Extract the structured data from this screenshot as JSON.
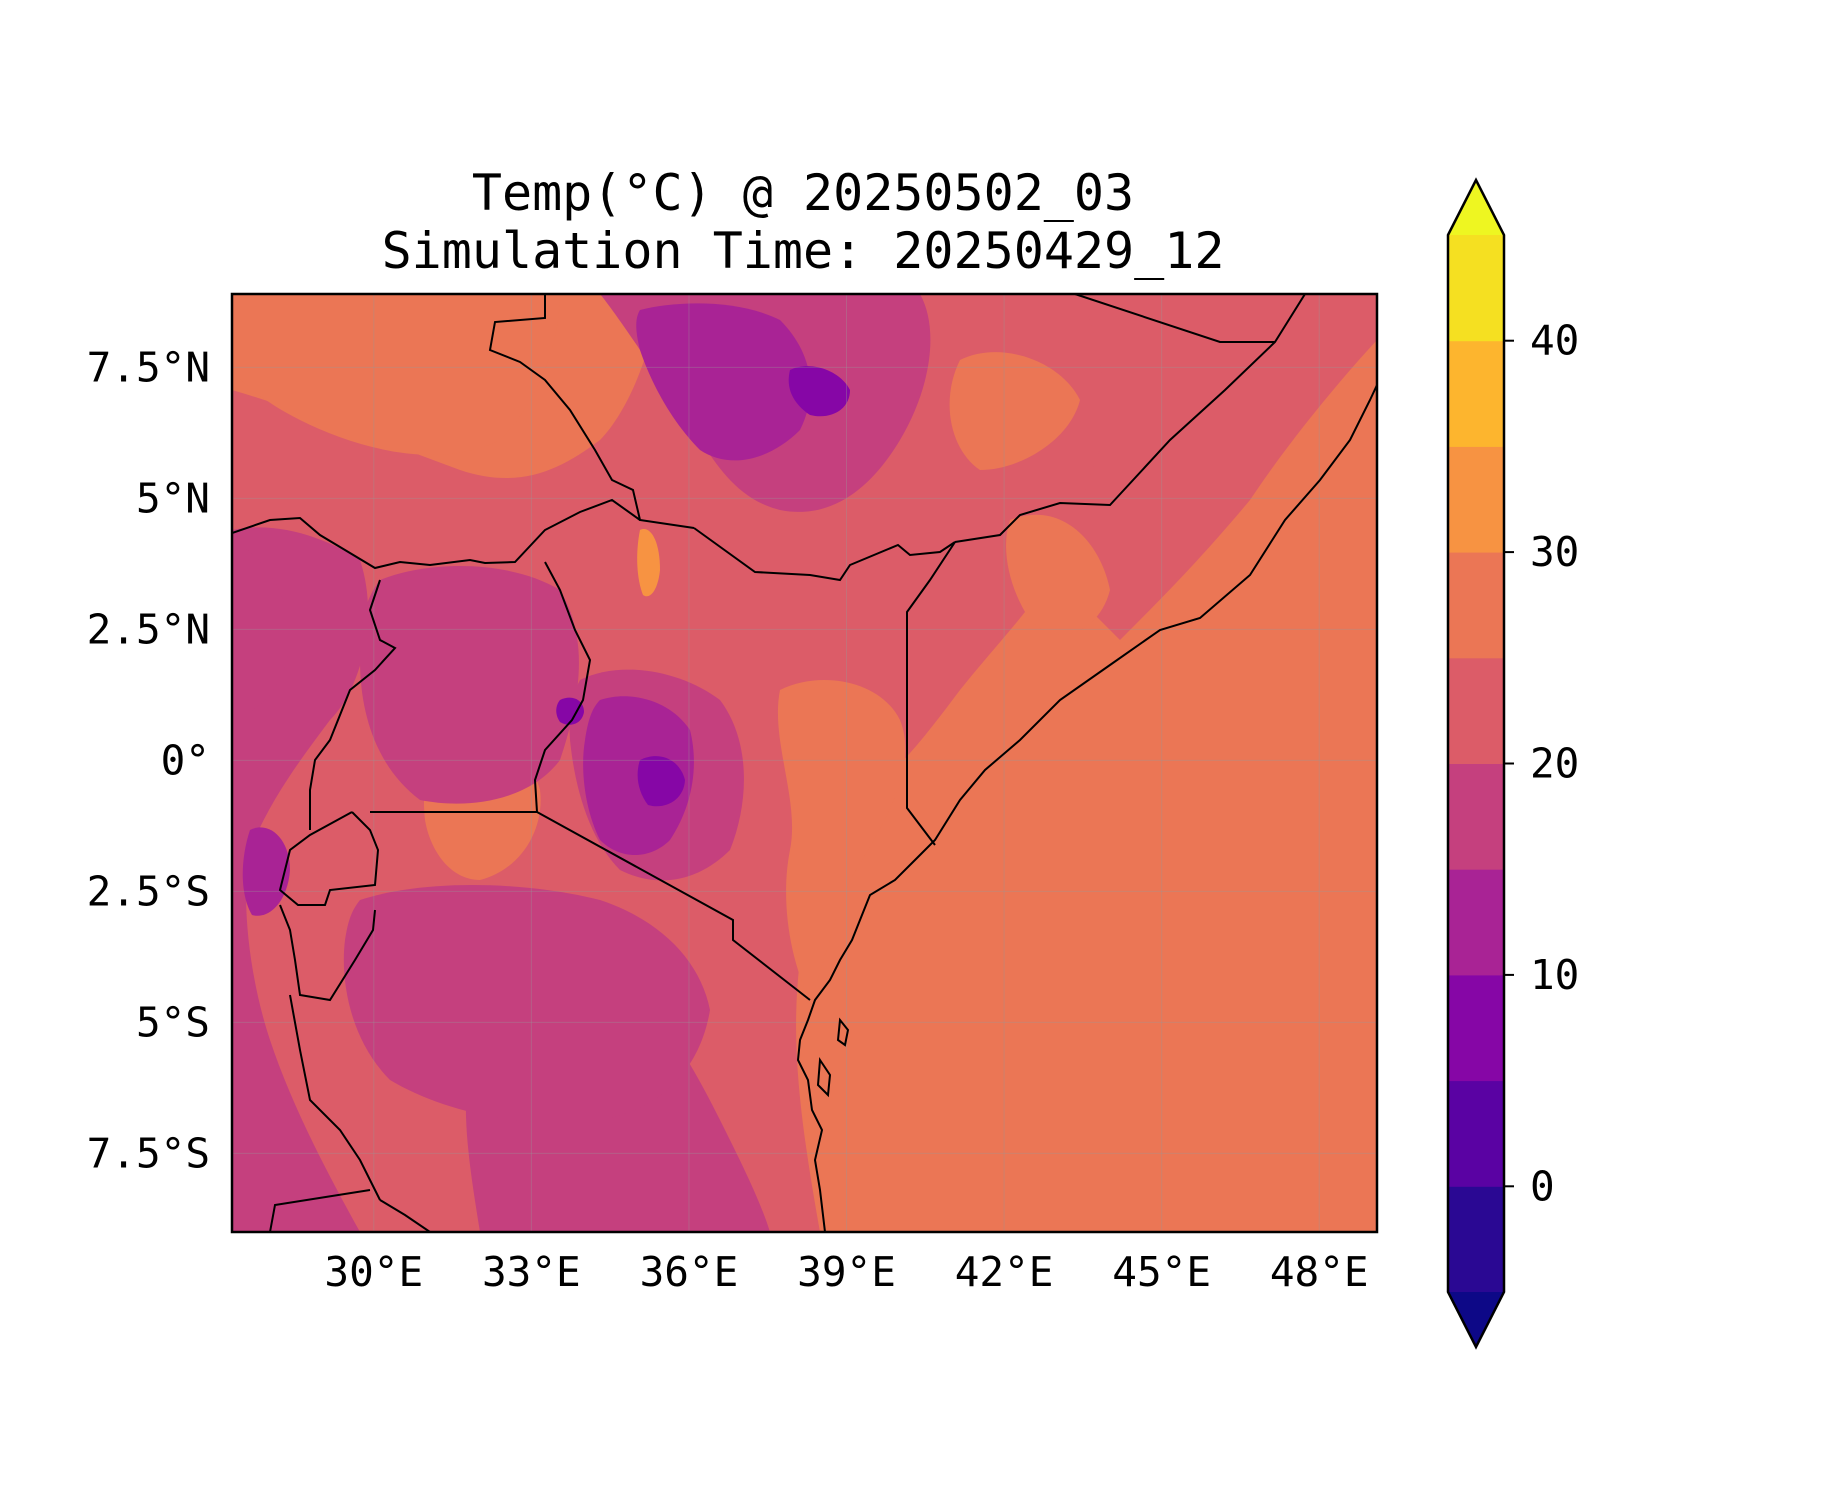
{
  "title": {
    "line1": "Temp(°C) @ 20250502_03",
    "line2": "Simulation Time: 20250429_12"
  },
  "map": {
    "lon_range": [
      27.3,
      49.1
    ],
    "lat_range": [
      -9.0,
      8.9
    ],
    "ocean_value_c": 27,
    "gridlines": true,
    "lon_ticks": [
      {
        "value": 30,
        "label": "30°E"
      },
      {
        "value": 33,
        "label": "33°E"
      },
      {
        "value": 36,
        "label": "36°E"
      },
      {
        "value": 39,
        "label": "39°E"
      },
      {
        "value": 42,
        "label": "42°E"
      },
      {
        "value": 45,
        "label": "45°E"
      },
      {
        "value": 48,
        "label": "48°E"
      }
    ],
    "lat_ticks": [
      {
        "value": 7.5,
        "label": "7.5°N"
      },
      {
        "value": 5,
        "label": "5°N"
      },
      {
        "value": 2.5,
        "label": "2.5°N"
      },
      {
        "value": 0,
        "label": "0°"
      },
      {
        "value": -2.5,
        "label": "2.5°S"
      },
      {
        "value": -5,
        "label": "5°S"
      },
      {
        "value": -7.5,
        "label": "7.5°S"
      }
    ]
  },
  "colorbar": {
    "range": [
      -5,
      45
    ],
    "extend": "both",
    "levels": [
      {
        "from": -5,
        "to": 0,
        "color": "#2a0893"
      },
      {
        "from": 0,
        "to": 5,
        "color": "#5a02a3"
      },
      {
        "from": 5,
        "to": 10,
        "color": "#8606a6"
      },
      {
        "from": 10,
        "to": 15,
        "color": "#a92395"
      },
      {
        "from": 15,
        "to": 20,
        "color": "#c5407e"
      },
      {
        "from": 20,
        "to": 25,
        "color": "#dc5c68"
      },
      {
        "from": 25,
        "to": 30,
        "color": "#eb7655"
      },
      {
        "from": 30,
        "to": 35,
        "color": "#f79342"
      },
      {
        "from": 35,
        "to": 40,
        "color": "#fdb52e"
      },
      {
        "from": 40,
        "to": 45,
        "color": "#f5e021"
      }
    ],
    "under_color": "#0d0887",
    "over_color": "#eef621",
    "ticks": [
      {
        "value": 0,
        "label": "0"
      },
      {
        "value": 10,
        "label": "10"
      },
      {
        "value": 20,
        "label": "20"
      },
      {
        "value": 30,
        "label": "30"
      },
      {
        "value": 40,
        "label": "40"
      }
    ]
  }
}
